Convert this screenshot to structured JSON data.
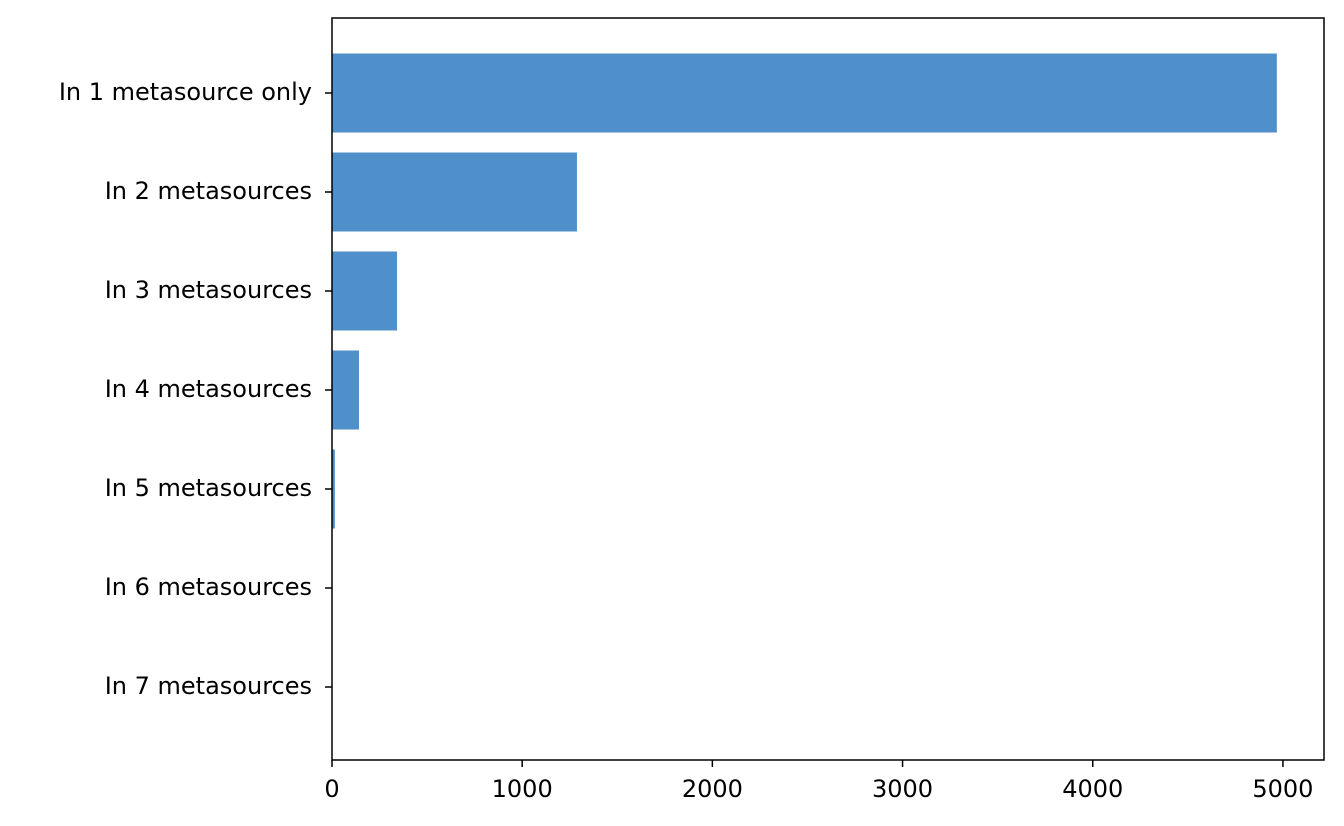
{
  "chart_data": {
    "type": "barh",
    "categories": [
      "In 1 metasource only",
      "In 2 metasources",
      "In 3 metasources",
      "In 4 metasources",
      "In 5 metasources",
      "In 6 metasources",
      "In 7 metasources"
    ],
    "values": [
      4968,
      1288,
      342,
      142,
      15,
      2,
      0
    ],
    "color": "#4f8fca",
    "xlim": [
      0,
      5216
    ],
    "xticks": [
      0,
      1000,
      2000,
      3000,
      4000,
      5000
    ]
  }
}
